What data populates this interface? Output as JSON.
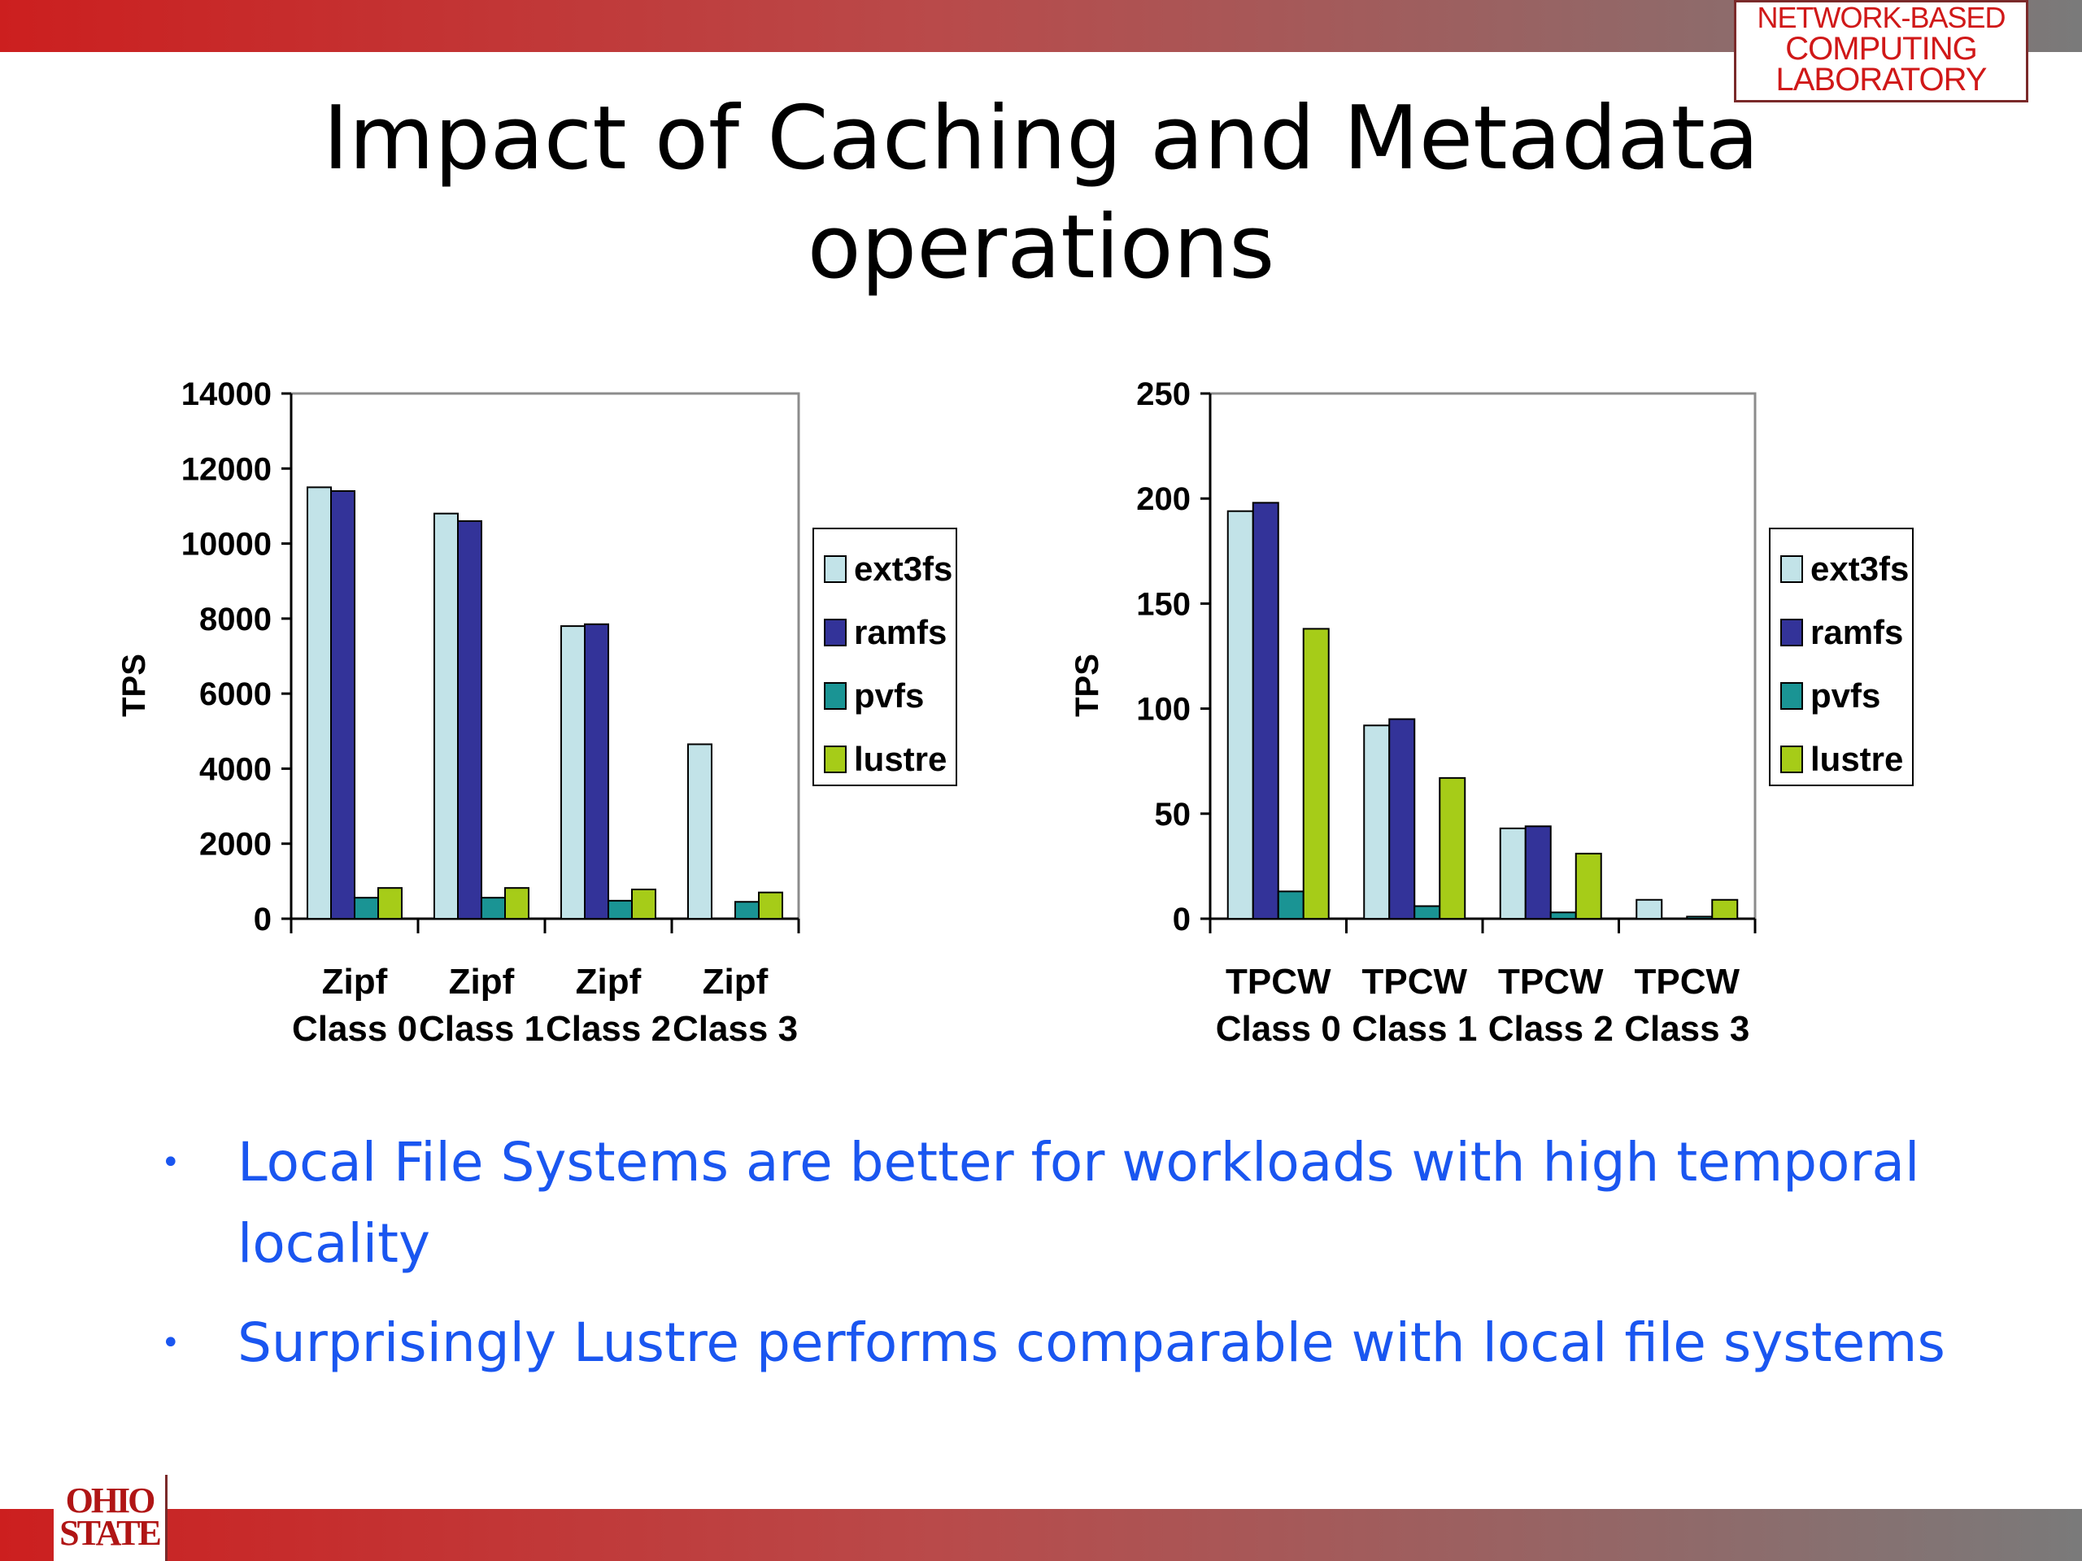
{
  "slide": {
    "title_line1": "Impact of Caching and Metadata",
    "title_line2": "operations",
    "lab_logo": [
      "NETWORK-BASED",
      "COMPUTING",
      "LABORATORY"
    ],
    "osu_logo": [
      "OHIO",
      "STATE"
    ],
    "bullets": [
      "Local File Systems are better for workloads with high temporal locality",
      "Surprisingly Lustre performs comparable with local file systems"
    ],
    "colors": {
      "ext3fs": "#c2e3e8",
      "ramfs": "#333399",
      "pvfs": "#1a9494",
      "lustre": "#a6cc18",
      "band_red": "#cc1f1f",
      "band_gray": "#7a7a7a",
      "bullet_text": "#1a56f0"
    }
  },
  "chart_data": [
    {
      "type": "bar",
      "ylabel": "TPS",
      "ylim": [
        0,
        14000
      ],
      "yticks": [
        "14000",
        "12000",
        "10000",
        "8000",
        "6000",
        "4000",
        "2000",
        "0"
      ],
      "categories": [
        [
          "Zipf",
          "Class 0"
        ],
        [
          "Zipf",
          "Class 1"
        ],
        [
          "Zipf",
          "Class 2"
        ],
        [
          "Zipf",
          "Class 3"
        ]
      ],
      "series": [
        {
          "name": "ext3fs",
          "values": [
            11500,
            10800,
            7800,
            4650
          ]
        },
        {
          "name": "ramfs",
          "values": [
            11400,
            10600,
            7850,
            0
          ]
        },
        {
          "name": "pvfs",
          "values": [
            560,
            560,
            480,
            450
          ]
        },
        {
          "name": "lustre",
          "values": [
            820,
            820,
            780,
            700
          ]
        }
      ],
      "legend": "right"
    },
    {
      "type": "bar",
      "ylabel": "TPS",
      "ylim": [
        0,
        250
      ],
      "yticks": [
        "250",
        "200",
        "150",
        "100",
        "50",
        "0"
      ],
      "categories": [
        [
          "TPCW",
          "Class 0"
        ],
        [
          "TPCW",
          "Class 1"
        ],
        [
          "TPCW",
          "Class 2"
        ],
        [
          "TPCW",
          "Class 3"
        ]
      ],
      "series": [
        {
          "name": "ext3fs",
          "values": [
            194,
            92,
            43,
            9
          ]
        },
        {
          "name": "ramfs",
          "values": [
            198,
            95,
            44,
            0
          ]
        },
        {
          "name": "pvfs",
          "values": [
            13,
            6,
            3,
            1
          ]
        },
        {
          "name": "lustre",
          "values": [
            138,
            67,
            31,
            9
          ]
        }
      ],
      "legend": "right"
    }
  ]
}
